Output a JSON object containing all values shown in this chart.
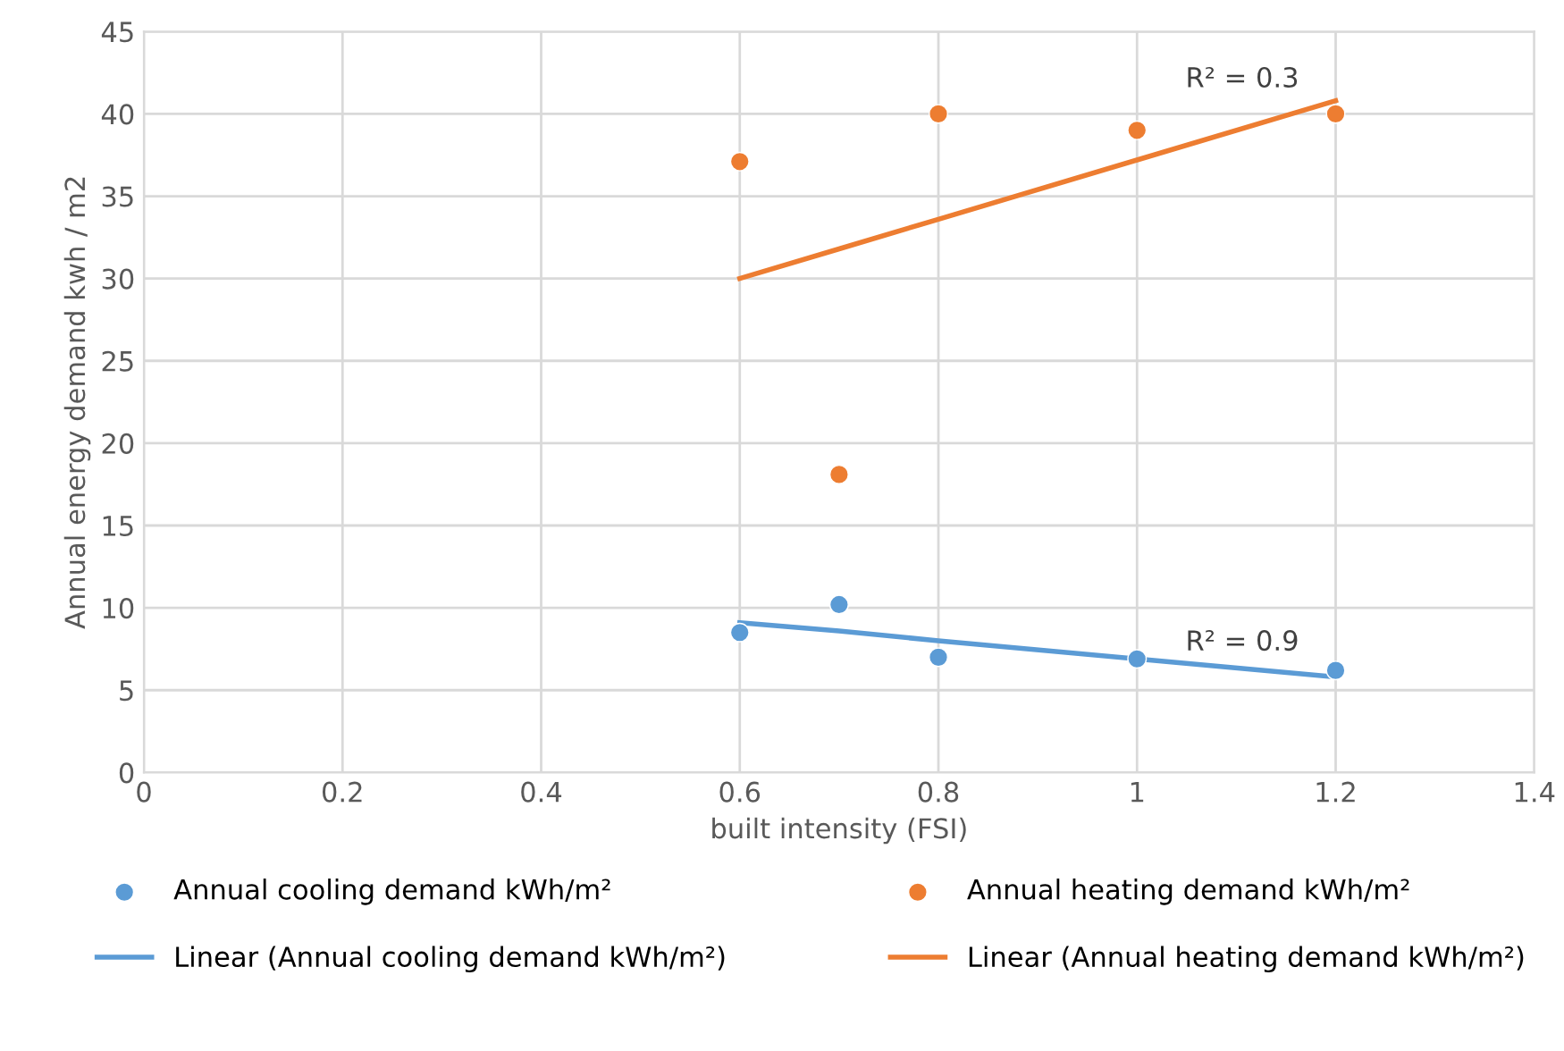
{
  "chart_data": {
    "type": "scatter",
    "xlabel": "built intensity (FSI)",
    "ylabel": "Annual energy demand kwh / m2",
    "x": [
      0.6,
      0.7,
      0.8,
      1.0,
      1.2
    ],
    "series": [
      {
        "name": "Annual cooling demand kWh/m²",
        "color": "#5b9bd5",
        "values": [
          8.5,
          10.2,
          7.0,
          6.9,
          6.2
        ],
        "marker": "circle"
      },
      {
        "name": "Annual heating demand kWh/m²",
        "color": "#ed7d31",
        "values": [
          37.1,
          18.1,
          40.0,
          39.0,
          40.0
        ],
        "marker": "circle"
      },
      {
        "name": "Linear (Annual cooling demand kWh/m²)",
        "type": "line",
        "color": "#5b9bd5",
        "values": [
          9.1,
          8.6,
          8.0,
          6.9,
          5.8
        ],
        "marker": "none",
        "line_style": "solid"
      },
      {
        "name": "Linear (Annual heating demand kWh/m²)",
        "type": "line",
        "color": "#ed7d31",
        "values": [
          30.0,
          31.8,
          33.6,
          37.2,
          40.8
        ],
        "marker": "none",
        "line_style": "solid"
      }
    ],
    "annotations": [
      "R² = 0.3",
      "R² = 0.9"
    ],
    "xlim": [
      0,
      1.4
    ],
    "xticks": [
      0,
      0.2,
      0.4,
      0.6,
      0.8,
      1,
      1.2,
      1.4
    ],
    "ylim": [
      0,
      45
    ],
    "yticks": [
      0,
      5,
      10,
      15,
      20,
      25,
      30,
      35,
      40,
      45
    ],
    "grid": true,
    "legend": "bottom"
  }
}
